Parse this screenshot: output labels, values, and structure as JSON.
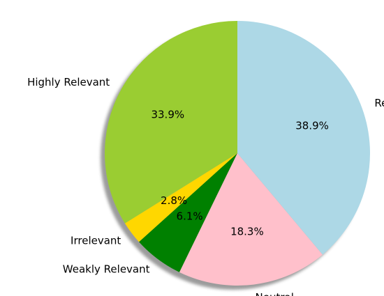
{
  "chart_data": {
    "type": "pie",
    "shadow": true,
    "start_angle_deg": 90,
    "direction": "counterclockwise",
    "slices": [
      {
        "label": "Highly Relevant",
        "value": 33.9,
        "pct_text": "33.9%",
        "color": "#9ACD32"
      },
      {
        "label": "Irrelevant",
        "value": 2.8,
        "pct_text": "2.8%",
        "color": "#FFD700"
      },
      {
        "label": "Weakly Relevant",
        "value": 6.1,
        "pct_text": "6.1%",
        "color": "#008000"
      },
      {
        "label": "Neutral",
        "value": 18.3,
        "pct_text": "18.3%",
        "color": "#FFC0CB"
      },
      {
        "label": "Relevant",
        "value": 38.9,
        "pct_text": "38.9%",
        "color": "#ADD8E6"
      }
    ]
  }
}
